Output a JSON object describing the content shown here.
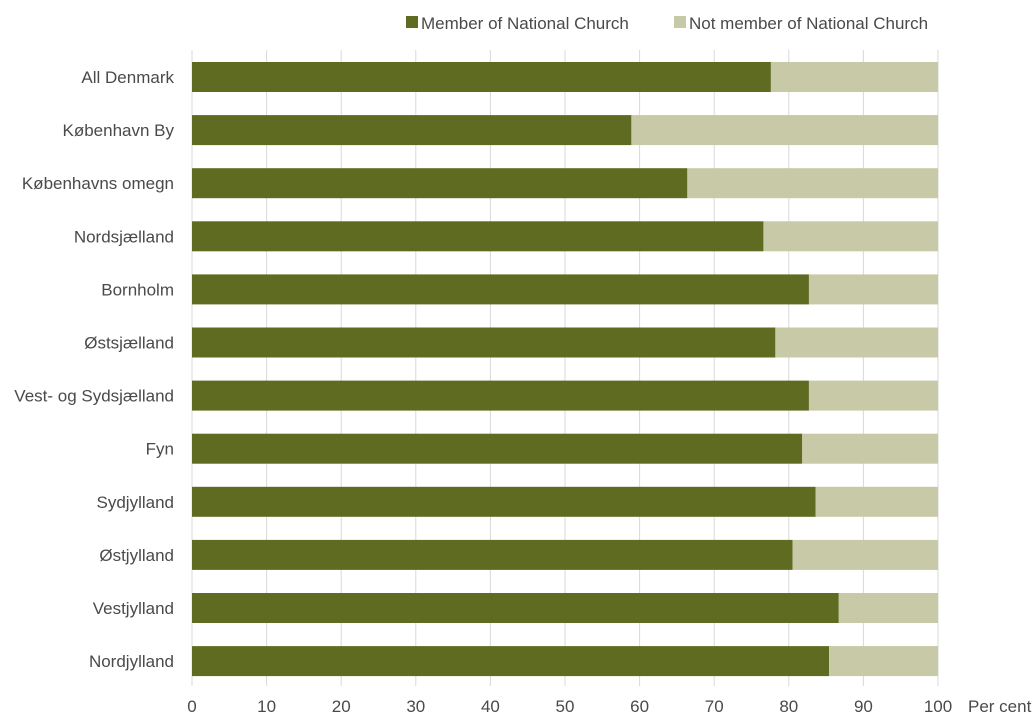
{
  "chart_data": {
    "type": "bar",
    "orientation": "horizontal",
    "stacked": true,
    "categories": [
      "All Denmark",
      "København By",
      "Københavns omegn",
      "Nordsjælland",
      "Bornholm",
      "Østsjælland",
      "Vest- og Sydsjælland",
      "Fyn",
      "Sydjylland",
      "Østjylland",
      "Vestjylland",
      "Nordjylland"
    ],
    "series": [
      {
        "name": "Member of National Church",
        "color": "#5f6b21",
        "values": [
          77.6,
          58.9,
          66.4,
          76.6,
          82.7,
          78.2,
          82.7,
          81.8,
          83.6,
          80.5,
          86.7,
          85.4
        ]
      },
      {
        "name": "Not member of National Church",
        "color": "#c8c9a6",
        "values": [
          22.4,
          41.1,
          33.6,
          23.4,
          17.3,
          21.8,
          17.3,
          18.2,
          16.4,
          19.5,
          13.3,
          14.6
        ]
      }
    ],
    "xlim": [
      0,
      100
    ],
    "xticks": [
      0,
      10,
      20,
      30,
      40,
      50,
      60,
      70,
      80,
      90,
      100
    ],
    "xlabel": "Per cent",
    "grid": "vertical",
    "legend": "top"
  }
}
